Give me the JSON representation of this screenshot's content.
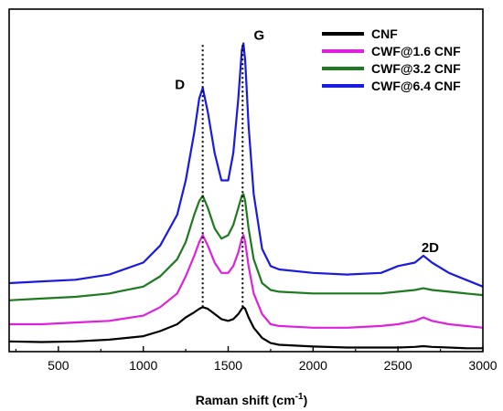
{
  "chart_data": {
    "type": "line",
    "xlabel_main": "Raman shift (cm",
    "xlabel_sup": "-1",
    "xlabel_close": ")",
    "ylabel": "",
    "xlim": [
      210,
      3000
    ],
    "ylim": [
      0,
      1
    ],
    "x_ticks": [
      500,
      1000,
      1500,
      2000,
      2500,
      3000
    ],
    "x_tick_labels": [
      "500",
      "1000",
      "1500",
      "2000",
      "2500",
      "3000"
    ],
    "y_ticks_shown": false,
    "grid": false,
    "legend": {
      "placement": "top-right",
      "entries": [
        "CNF",
        "CWF@1.6 CNF",
        "CWF@3.2 CNF",
        "CWF@6.4 CNF"
      ]
    },
    "annotations": [
      {
        "text": "D",
        "x": 1350
      },
      {
        "text": "G",
        "x": 1585
      },
      {
        "text": "2D",
        "x": 2690
      }
    ],
    "reference_lines": [
      {
        "x": 1350,
        "style": "dotted"
      },
      {
        "x": 1585,
        "style": "dotted"
      }
    ],
    "series": [
      {
        "name": "CNF",
        "color": "#000000",
        "x": [
          210,
          400,
          600,
          800,
          1000,
          1100,
          1200,
          1250,
          1300,
          1330,
          1350,
          1380,
          1420,
          1460,
          1500,
          1530,
          1560,
          1580,
          1590,
          1600,
          1620,
          1650,
          1700,
          1750,
          1800,
          2000,
          2200,
          2400,
          2500,
          2600,
          2650,
          2700,
          2800,
          2900,
          3000
        ],
        "y": [
          0.03,
          0.028,
          0.03,
          0.035,
          0.045,
          0.06,
          0.08,
          0.1,
          0.115,
          0.125,
          0.13,
          0.125,
          0.11,
          0.095,
          0.09,
          0.095,
          0.11,
          0.125,
          0.13,
          0.125,
          0.1,
          0.07,
          0.04,
          0.025,
          0.02,
          0.015,
          0.012,
          0.012,
          0.012,
          0.014,
          0.016,
          0.014,
          0.012,
          0.01,
          0.01
        ]
      },
      {
        "name": "CWF@1.6 CNF",
        "color": "#dd22dd",
        "x": [
          210,
          400,
          600,
          800,
          1000,
          1100,
          1200,
          1250,
          1300,
          1330,
          1350,
          1380,
          1420,
          1460,
          1500,
          1530,
          1560,
          1580,
          1590,
          1600,
          1620,
          1650,
          1700,
          1750,
          1800,
          2000,
          2200,
          2400,
          2500,
          2600,
          2650,
          2700,
          2800,
          2900,
          3000
        ],
        "y": [
          0.08,
          0.08,
          0.085,
          0.09,
          0.105,
          0.13,
          0.17,
          0.22,
          0.28,
          0.32,
          0.34,
          0.31,
          0.26,
          0.23,
          0.23,
          0.25,
          0.29,
          0.33,
          0.34,
          0.32,
          0.25,
          0.17,
          0.11,
          0.08,
          0.075,
          0.07,
          0.07,
          0.075,
          0.08,
          0.09,
          0.1,
          0.09,
          0.08,
          0.075,
          0.07
        ]
      },
      {
        "name": "CWF@3.2 CNF",
        "color": "#1e7a1e",
        "x": [
          210,
          400,
          600,
          800,
          1000,
          1100,
          1200,
          1250,
          1300,
          1330,
          1350,
          1380,
          1420,
          1460,
          1500,
          1530,
          1560,
          1580,
          1590,
          1600,
          1620,
          1650,
          1700,
          1750,
          1800,
          2000,
          2200,
          2400,
          2500,
          2600,
          2650,
          2700,
          2800,
          2900,
          3000
        ],
        "y": [
          0.15,
          0.155,
          0.16,
          0.17,
          0.19,
          0.22,
          0.27,
          0.32,
          0.4,
          0.44,
          0.455,
          0.42,
          0.36,
          0.33,
          0.34,
          0.37,
          0.42,
          0.455,
          0.46,
          0.44,
          0.36,
          0.27,
          0.2,
          0.18,
          0.175,
          0.17,
          0.17,
          0.17,
          0.175,
          0.18,
          0.185,
          0.18,
          0.175,
          0.17,
          0.165
        ]
      },
      {
        "name": "CWF@6.4 CNF",
        "color": "#1a1ae0",
        "x": [
          210,
          400,
          600,
          800,
          1000,
          1100,
          1200,
          1250,
          1300,
          1330,
          1350,
          1380,
          1420,
          1460,
          1500,
          1530,
          1560,
          1580,
          1590,
          1600,
          1620,
          1650,
          1700,
          1750,
          1800,
          2000,
          2200,
          2400,
          2500,
          2600,
          2650,
          2700,
          2800,
          2900,
          3000
        ],
        "y": [
          0.2,
          0.205,
          0.21,
          0.225,
          0.26,
          0.31,
          0.4,
          0.5,
          0.64,
          0.74,
          0.77,
          0.7,
          0.58,
          0.5,
          0.5,
          0.58,
          0.74,
          0.88,
          0.9,
          0.85,
          0.66,
          0.46,
          0.3,
          0.25,
          0.24,
          0.23,
          0.225,
          0.23,
          0.25,
          0.26,
          0.28,
          0.26,
          0.23,
          0.21,
          0.19
        ]
      }
    ]
  }
}
